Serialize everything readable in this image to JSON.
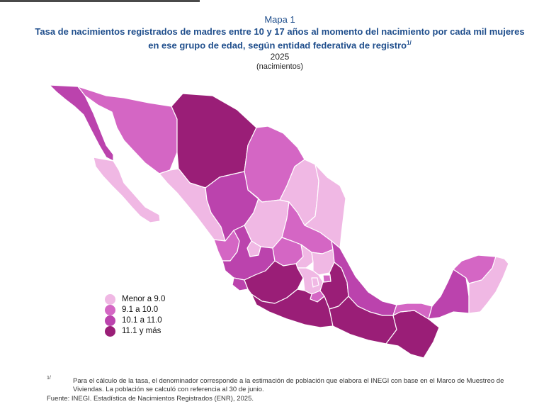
{
  "header": {
    "map_label": "Mapa 1",
    "title": "Tasa de nacimientos registrados de madres entre 10 y 17 años al momento del nacimiento por cada mil mujeres en ese grupo de edad, según entidad federativa de registro",
    "title_note": "1/",
    "year": "2025",
    "unit": "(nacimientos)"
  },
  "colors": {
    "class_1": "#f0b8e4",
    "class_2": "#d466c4",
    "class_3": "#bb43ad",
    "class_4": "#9a1e77",
    "border": "#ffffff"
  },
  "legend": [
    {
      "label": "Menor a 9.0",
      "color": "#f0b8e4"
    },
    {
      "label": "9.1 a 10.0",
      "color": "#d466c4"
    },
    {
      "label": "10.1 a 11.0",
      "color": "#bb43ad"
    },
    {
      "label": "11.1 y más",
      "color": "#9a1e77"
    }
  ],
  "states": [
    {
      "name": "Baja California",
      "class": 3
    },
    {
      "name": "Baja California Sur",
      "class": 1
    },
    {
      "name": "Sonora",
      "class": 2
    },
    {
      "name": "Chihuahua",
      "class": 4
    },
    {
      "name": "Coahuila",
      "class": 2
    },
    {
      "name": "Nuevo León",
      "class": 1
    },
    {
      "name": "Tamaulipas",
      "class": 1
    },
    {
      "name": "Sinaloa",
      "class": 1
    },
    {
      "name": "Durango",
      "class": 3
    },
    {
      "name": "Zacatecas",
      "class": 1
    },
    {
      "name": "San Luis Potosí",
      "class": 2
    },
    {
      "name": "Nayarit",
      "class": 2
    },
    {
      "name": "Aguascalientes",
      "class": 1
    },
    {
      "name": "Jalisco",
      "class": 3
    },
    {
      "name": "Guanajuato",
      "class": 2
    },
    {
      "name": "Querétaro",
      "class": 1
    },
    {
      "name": "Hidalgo",
      "class": 1
    },
    {
      "name": "Colima",
      "class": 3
    },
    {
      "name": "Michoacán",
      "class": 4
    },
    {
      "name": "México",
      "class": 1
    },
    {
      "name": "Ciudad de México",
      "class": 1
    },
    {
      "name": "Tlaxcala",
      "class": 2
    },
    {
      "name": "Morelos",
      "class": 2
    },
    {
      "name": "Puebla",
      "class": 4
    },
    {
      "name": "Veracruz",
      "class": 3
    },
    {
      "name": "Guerrero",
      "class": 4
    },
    {
      "name": "Oaxaca",
      "class": 4
    },
    {
      "name": "Chiapas",
      "class": 4
    },
    {
      "name": "Tabasco",
      "class": 2
    },
    {
      "name": "Campeche",
      "class": 3
    },
    {
      "name": "Yucatán",
      "class": 2
    },
    {
      "name": "Quintana Roo",
      "class": 1
    }
  ],
  "footnote": {
    "marker": "1/",
    "text": "Para el cálculo de la tasa, el denominador corresponde a la estimación de población que elabora el INEGI con base en el Marco de Muestreo de Viviendas. La población se calculó con referencia al 30 de junio."
  },
  "source": "Fuente: INEGI. Estadística de Nacimientos Registrados (ENR), 2025."
}
